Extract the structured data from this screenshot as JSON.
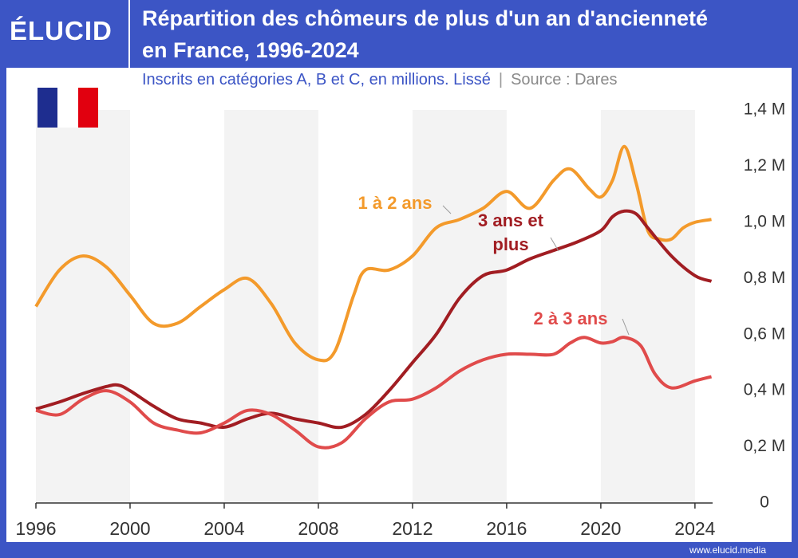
{
  "brand": {
    "logo": "ÉLUCID",
    "url": "www.elucid.media"
  },
  "chart_data": {
    "type": "line",
    "title": "Répartition des chômeurs de plus d'un an d'ancienneté en France, 1996-2024",
    "subtitle": "Inscrits en catégories A, B et C, en millions. Lissé",
    "source": "Source : Dares",
    "xlim": [
      1996,
      2024.75
    ],
    "xticks": [
      1996,
      2000,
      2004,
      2008,
      2012,
      2016,
      2020,
      2024
    ],
    "ylim": [
      0,
      1.4
    ],
    "yticks": [
      0,
      {
        "value": 0.2,
        "label": "0,2 M"
      },
      {
        "value": 0.4,
        "label": "0,4 M"
      },
      {
        "value": 0.6,
        "label": "0,6 M"
      },
      {
        "value": 0.8,
        "label": "0,8 M"
      },
      {
        "value": 1.0,
        "label": "1,0 M"
      },
      {
        "value": 1.2,
        "label": "1,2 M"
      },
      {
        "value": 1.4,
        "label": "1,4 M"
      }
    ],
    "grid": false,
    "series": [
      {
        "name": "1 à 2 ans",
        "color": "#f39a2b",
        "x": [
          1996,
          1997,
          1998,
          1999,
          2000,
          2001,
          2002,
          2003,
          2004,
          2005,
          2006,
          2007,
          2008,
          2008.7,
          2009.5,
          2010,
          2011,
          2012,
          2013,
          2014,
          2015,
          2016,
          2017,
          2018,
          2018.7,
          2019.5,
          2020,
          2020.5,
          2021,
          2021.5,
          2022,
          2022.5,
          2023,
          2023.5,
          2024,
          2024.7
        ],
        "values": [
          0.7,
          0.83,
          0.88,
          0.84,
          0.74,
          0.64,
          0.64,
          0.7,
          0.76,
          0.8,
          0.71,
          0.57,
          0.51,
          0.54,
          0.74,
          0.83,
          0.83,
          0.88,
          0.98,
          1.01,
          1.05,
          1.11,
          1.05,
          1.15,
          1.19,
          1.12,
          1.09,
          1.15,
          1.27,
          1.14,
          0.97,
          0.94,
          0.94,
          0.98,
          1.0,
          1.01
        ]
      },
      {
        "name": "3 ans et plus",
        "color": "#a11d22",
        "x": [
          1996,
          1997,
          1998,
          1999,
          1999.5,
          2000,
          2001,
          2002,
          2003,
          2004,
          2005,
          2006,
          2007,
          2008,
          2009,
          2010,
          2011,
          2012,
          2013,
          2014,
          2015,
          2016,
          2017,
          2018,
          2019,
          2020,
          2020.5,
          2021,
          2021.5,
          2022,
          2023,
          2024,
          2024.7
        ],
        "values": [
          0.335,
          0.36,
          0.39,
          0.415,
          0.42,
          0.4,
          0.345,
          0.3,
          0.285,
          0.27,
          0.3,
          0.32,
          0.3,
          0.285,
          0.27,
          0.315,
          0.4,
          0.5,
          0.6,
          0.73,
          0.81,
          0.83,
          0.87,
          0.9,
          0.93,
          0.97,
          1.02,
          1.04,
          1.03,
          0.98,
          0.88,
          0.81,
          0.79
        ]
      },
      {
        "name": "2 à 3 ans",
        "color": "#e04b4b",
        "x": [
          1996,
          1997,
          1998,
          1999,
          2000,
          2001,
          2002,
          2003,
          2004,
          2005,
          2006,
          2007,
          2008,
          2009,
          2010,
          2011,
          2012,
          2013,
          2014,
          2015,
          2016,
          2017,
          2018,
          2018.7,
          2019.3,
          2020,
          2020.5,
          2021,
          2021.7,
          2022.3,
          2023,
          2024,
          2024.7
        ],
        "values": [
          0.33,
          0.315,
          0.37,
          0.4,
          0.36,
          0.285,
          0.26,
          0.25,
          0.285,
          0.33,
          0.315,
          0.26,
          0.2,
          0.215,
          0.3,
          0.36,
          0.37,
          0.41,
          0.47,
          0.51,
          0.53,
          0.53,
          0.53,
          0.57,
          0.59,
          0.57,
          0.575,
          0.59,
          0.56,
          0.46,
          0.41,
          0.435,
          0.45
        ]
      }
    ]
  }
}
